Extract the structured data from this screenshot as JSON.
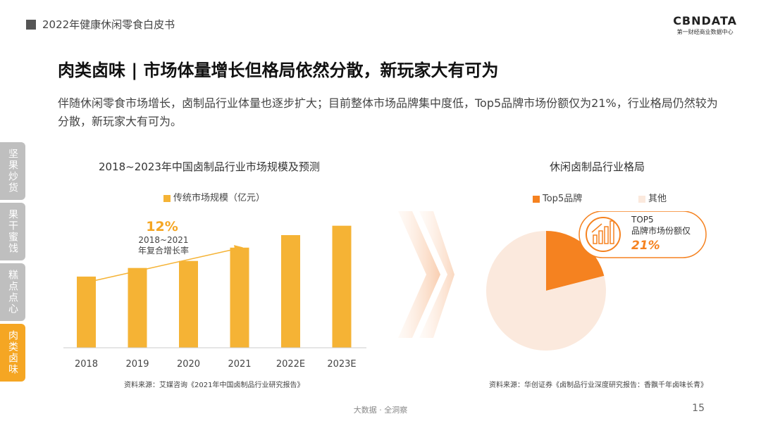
{
  "header": {
    "report_title": "2022年健康休闲零食白皮书",
    "brand_logo": "CBNDATA",
    "brand_sub": "第一财经商业数据中心"
  },
  "title": "肉类卤味 | 市场体量增长但格局依然分散，新玩家大有可为",
  "subtitle": "伴随休闲零食市场增长，卤制品行业体量也逐步扩大；目前整体市场品牌集中度低，Top5品牌市场份额仅为21%，行业格局仍然较为分散，新玩家大有可为。",
  "side_tabs": [
    {
      "label": "坚果炒货",
      "active": false
    },
    {
      "label": "果干蜜饯",
      "active": false
    },
    {
      "label": "糕点点心",
      "active": false
    },
    {
      "label": "肉类卤味",
      "active": true
    }
  ],
  "colors": {
    "bar": "#f5b335",
    "accent": "#f58220",
    "pie_other": "#fbe9dd",
    "active_tab": "#f5a623"
  },
  "chart_data": [
    {
      "type": "bar",
      "title": "2018~2023年中国卤制品行业市场规模及预测",
      "legend": "传统市场规模（亿元）",
      "categories": [
        "2018",
        "2019",
        "2020",
        "2021",
        "2022E",
        "2023E"
      ],
      "values": [
        910,
        1020,
        1110,
        1280,
        1440,
        1560
      ],
      "annotation": {
        "value": "12%",
        "line1": "2018~2021",
        "line2": "年复合增长率"
      },
      "source": "资料来源：艾媒咨询《2021年中国卤制品行业研究报告》"
    },
    {
      "type": "pie",
      "title": "休闲卤制品行业格局",
      "slices": [
        {
          "name": "Top5品牌",
          "value": 21
        },
        {
          "name": "其他",
          "value": 79
        }
      ],
      "callout": {
        "line1": "TOP5",
        "line2": "品牌市场份额仅",
        "value": "21%"
      },
      "source": "资料来源：华创证券《卤制品行业深度研究报告：香飘千年卤味长青》"
    }
  ],
  "footer": {
    "text": "大数据 · 全洞察",
    "page": "15"
  }
}
